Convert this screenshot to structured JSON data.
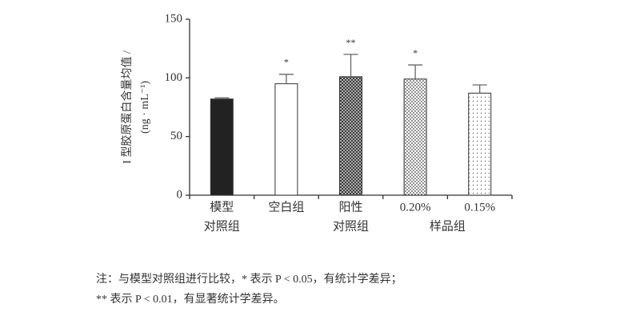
{
  "chart_data": {
    "type": "bar",
    "ylabel": [
      "I 型胶原蛋白含量均值 /",
      "(ng · mL⁻¹)"
    ],
    "categories": [
      [
        "模型",
        "对照组"
      ],
      [
        "空白组"
      ],
      [
        "阳性",
        "对照组"
      ],
      [
        "0.20%"
      ],
      [
        "0.15%"
      ]
    ],
    "sample_group_label": "样品组",
    "series": [
      {
        "values": [
          82,
          95,
          101,
          99,
          87
        ],
        "errors": [
          1,
          8,
          19,
          12,
          7
        ],
        "patterns": [
          "solid",
          "none",
          "crosshatch",
          "dots",
          "sparse-dots"
        ],
        "color": "#222222"
      }
    ],
    "significance": [
      null,
      "*",
      "**",
      "*",
      null
    ],
    "ylim": [
      0,
      150
    ],
    "yticks": [
      0,
      50,
      100,
      150
    ],
    "note": [
      "注：与模型对照组进行比较，* 表示 P < 0.05，有统计学差异；",
      "** 表示 P < 0.01，有显著统计学差异。"
    ]
  }
}
